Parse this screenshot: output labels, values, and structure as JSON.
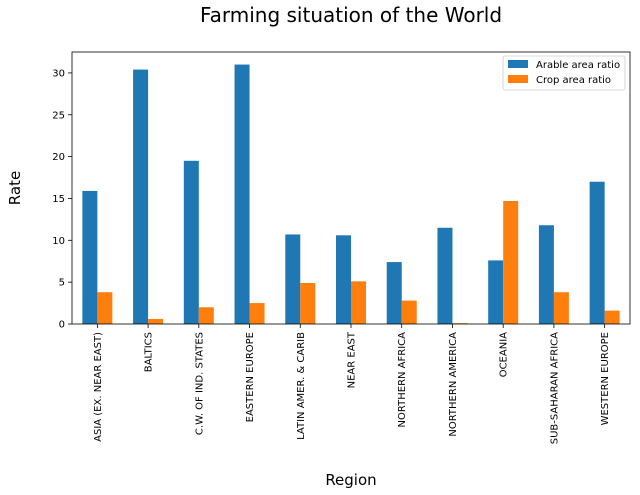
{
  "chart_data": {
    "type": "bar",
    "title": "Farming situation of the World",
    "xlabel": "Region",
    "ylabel": "Rate",
    "ylim": [
      0,
      32.5
    ],
    "yticks": [
      0,
      5,
      10,
      15,
      20,
      25,
      30
    ],
    "grid": false,
    "legend_position": "top-right",
    "categories": [
      "ASIA (EX. NEAR EAST)",
      "BALTICS",
      "C.W. OF IND. STATES",
      "EASTERN EUROPE",
      "LATIN AMER. & CARIB",
      "NEAR EAST",
      "NORTHERN AFRICA",
      "NORTHERN AMERICA",
      "OCEANIA",
      "SUB-SAHARAN AFRICA",
      "WESTERN EUROPE"
    ],
    "series": [
      {
        "name": "Arable area ratio",
        "color": "#1f77b4",
        "values": [
          15.9,
          30.4,
          19.5,
          31.0,
          10.7,
          10.6,
          7.4,
          11.5,
          7.6,
          11.8,
          17.0
        ]
      },
      {
        "name": "Crop area ratio",
        "color": "#ff7f0e",
        "values": [
          3.8,
          0.6,
          2.0,
          2.5,
          4.9,
          5.1,
          2.8,
          0.1,
          14.7,
          3.8,
          1.6
        ]
      }
    ]
  }
}
